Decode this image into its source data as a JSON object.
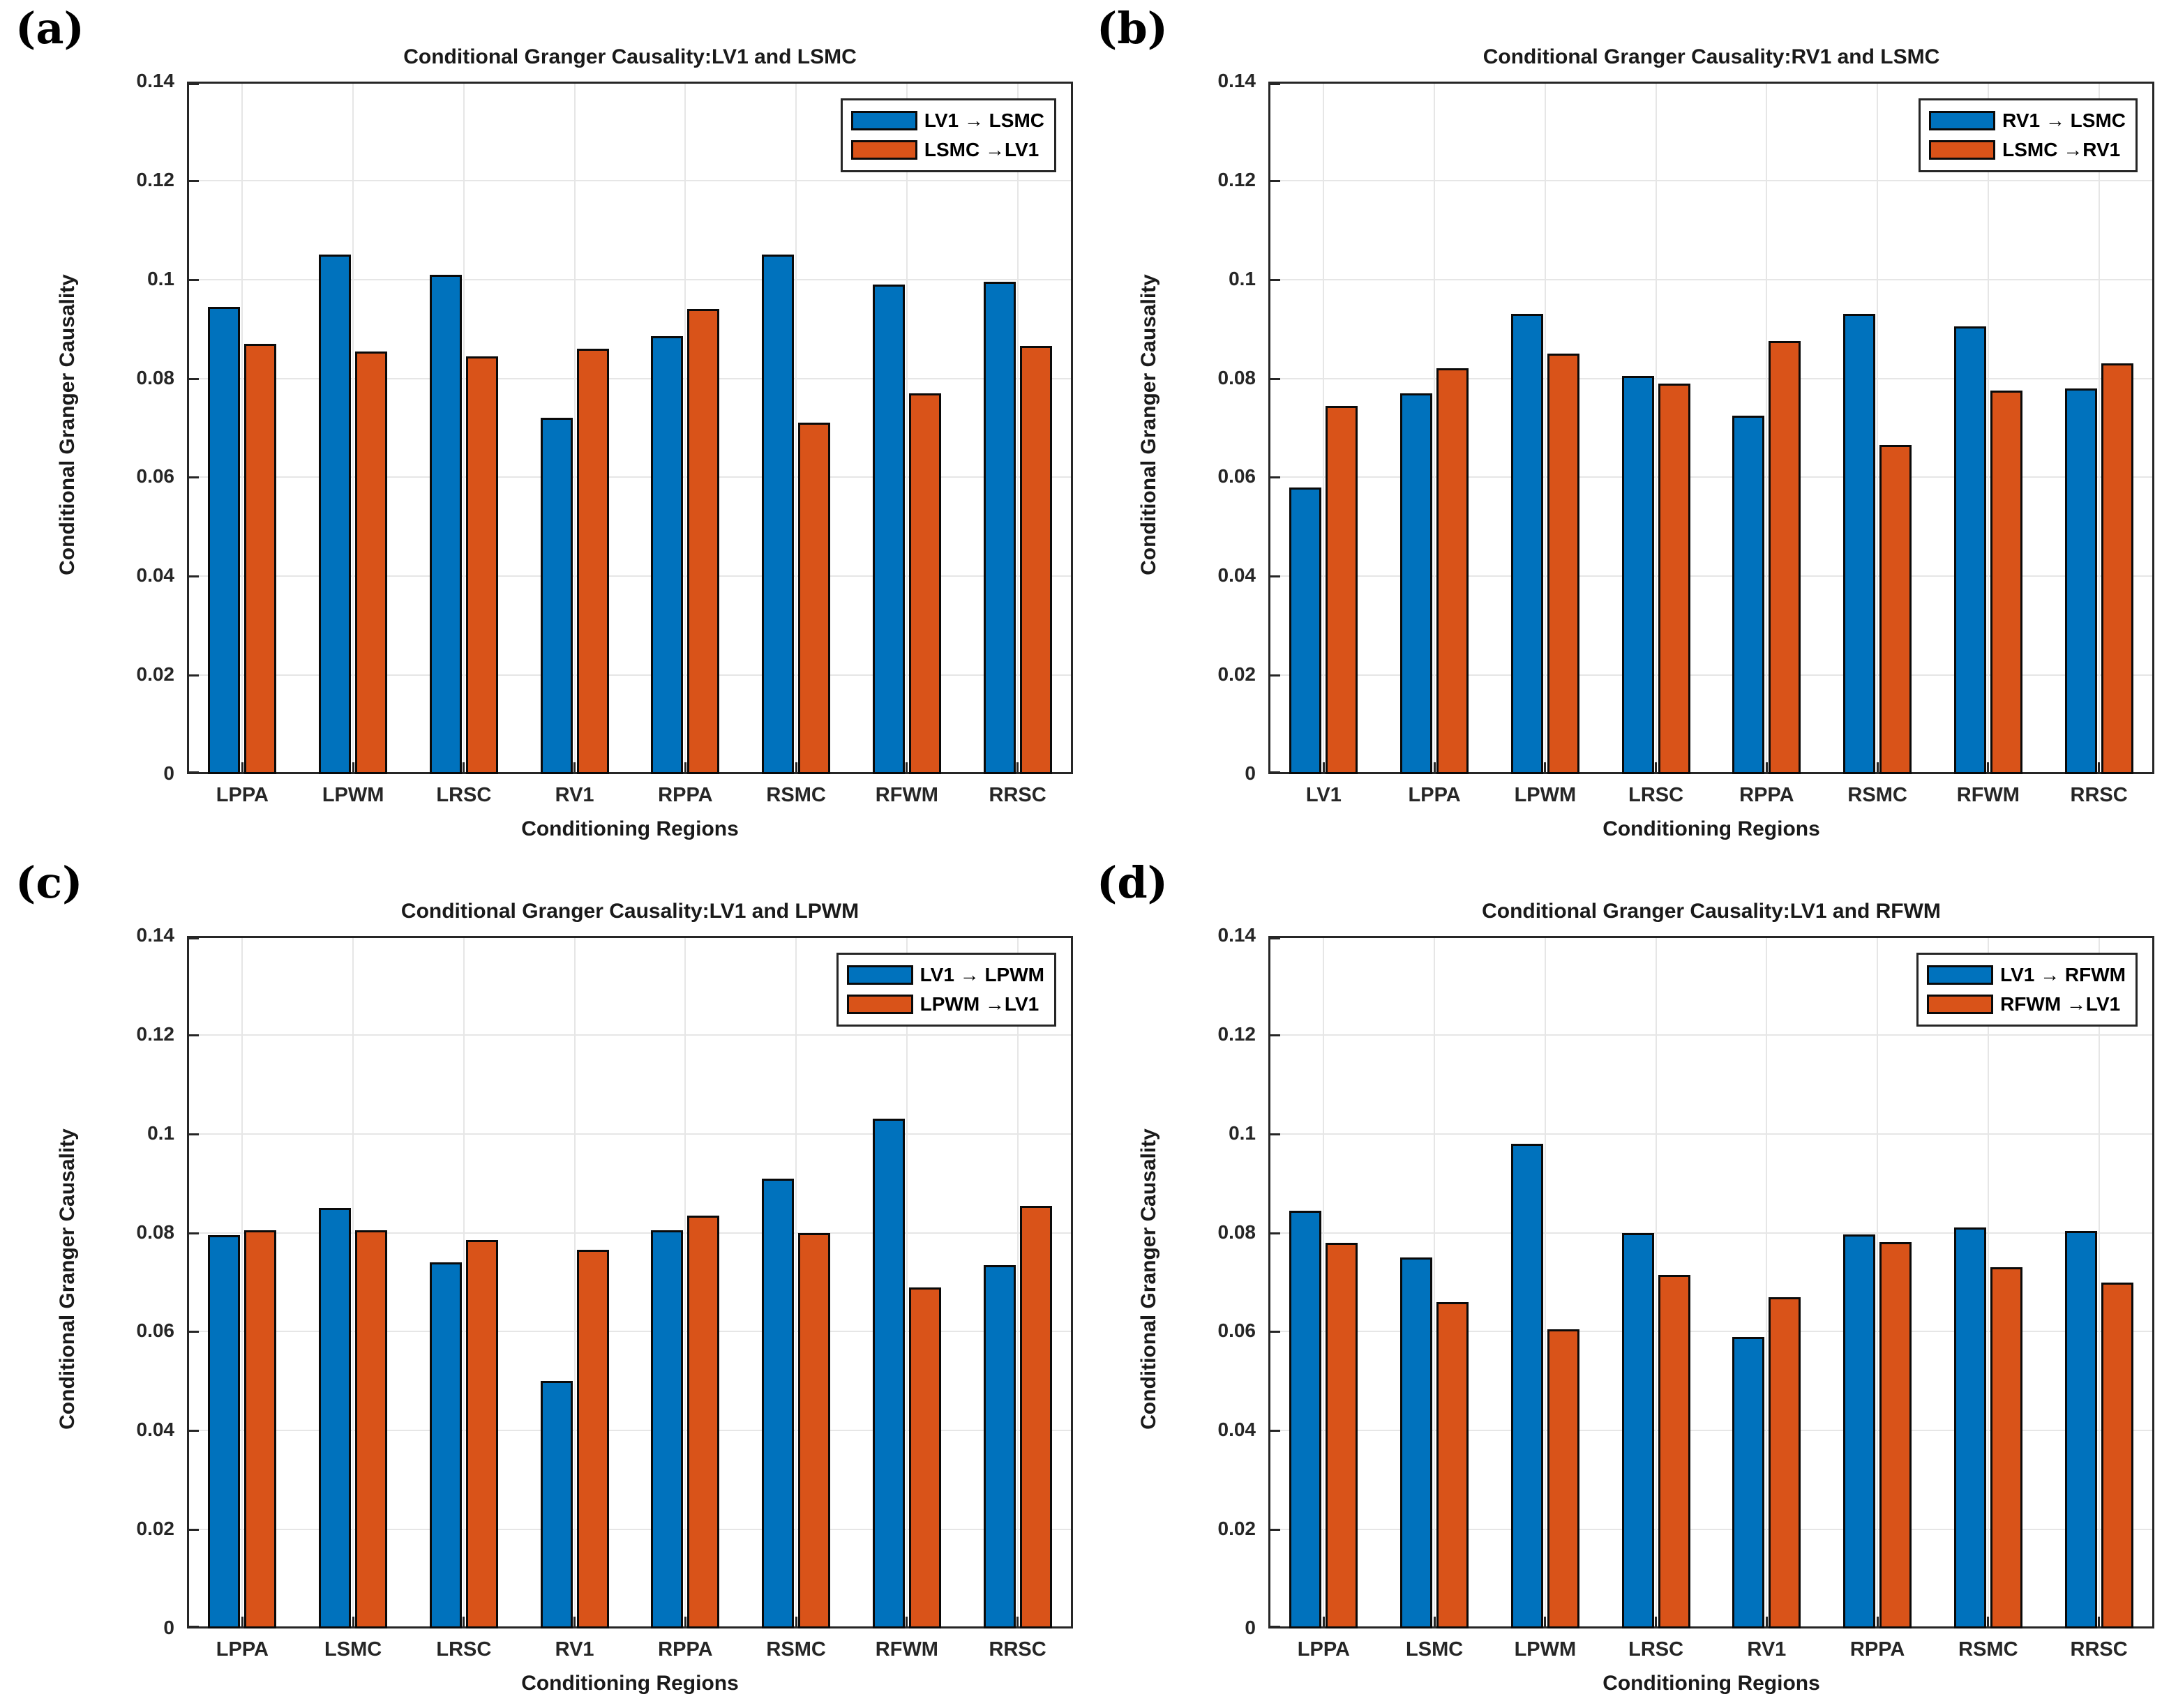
{
  "figure": {
    "background": "#ffffff",
    "axis_color": "#262626",
    "grid_color": "#e6e6e6",
    "bar_edge_color": "#0a0a0a",
    "blue": "#0072BD",
    "orange": "#D95319",
    "xlabel": "Conditioning Regions",
    "ylabel": "Conditional Granger Causality",
    "ytick_values": [
      0,
      0.02,
      0.04,
      0.06,
      0.08,
      0.1,
      0.12,
      0.14
    ],
    "ytick_labels": [
      "0",
      "0.02",
      "0.04",
      "0.06",
      "0.08",
      "0.1",
      "0.12",
      "0.14"
    ]
  },
  "chart_data": [
    {
      "panel": "(a)",
      "type": "bar",
      "title": "Conditional Granger Causality:LV1 and LSMC",
      "xlabel": "Conditioning Regions",
      "ylabel": "Conditional Granger Causality",
      "ylim": [
        0,
        0.14
      ],
      "grid": true,
      "legend_position": "top-right",
      "categories": [
        "LPPA",
        "LPWM",
        "LRSC",
        "RV1",
        "RPPA",
        "RSMC",
        "RFWM",
        "RRSC"
      ],
      "series": [
        {
          "name": "LV1 → LSMC",
          "color": "#0072BD",
          "values": [
            0.0945,
            0.105,
            0.101,
            0.072,
            0.0885,
            0.105,
            0.099,
            0.0995
          ]
        },
        {
          "name": "LSMC →LV1",
          "color": "#D95319",
          "values": [
            0.087,
            0.0855,
            0.0845,
            0.086,
            0.094,
            0.071,
            0.077,
            0.0865
          ]
        }
      ]
    },
    {
      "panel": "(b)",
      "type": "bar",
      "title": "Conditional Granger Causality:RV1 and LSMC",
      "xlabel": "Conditioning Regions",
      "ylabel": "Conditional Granger Causality",
      "ylim": [
        0,
        0.14
      ],
      "grid": true,
      "legend_position": "top-right",
      "categories": [
        "LV1",
        "LPPA",
        "LPWM",
        "LRSC",
        "RPPA",
        "RSMC",
        "RFWM",
        "RRSC"
      ],
      "series": [
        {
          "name": "RV1 → LSMC",
          "color": "#0072BD",
          "values": [
            0.058,
            0.077,
            0.093,
            0.0805,
            0.0725,
            0.093,
            0.0905,
            0.078
          ]
        },
        {
          "name": "LSMC →RV1",
          "color": "#D95319",
          "values": [
            0.0745,
            0.082,
            0.085,
            0.079,
            0.0875,
            0.0665,
            0.0775,
            0.083
          ]
        }
      ]
    },
    {
      "panel": "(c)",
      "type": "bar",
      "title": "Conditional Granger Causality:LV1 and LPWM",
      "xlabel": "Conditioning Regions",
      "ylabel": "Conditional Granger Causality",
      "ylim": [
        0,
        0.14
      ],
      "grid": true,
      "legend_position": "top-right",
      "categories": [
        "LPPA",
        "LSMC",
        "LRSC",
        "RV1",
        "RPPA",
        "RSMC",
        "RFWM",
        "RRSC"
      ],
      "series": [
        {
          "name": "LV1 → LPWM",
          "color": "#0072BD",
          "values": [
            0.0795,
            0.085,
            0.074,
            0.05,
            0.0805,
            0.091,
            0.103,
            0.0735
          ]
        },
        {
          "name": "LPWM →LV1",
          "color": "#D95319",
          "values": [
            0.0805,
            0.0805,
            0.0785,
            0.0765,
            0.0835,
            0.08,
            0.069,
            0.0855
          ]
        }
      ]
    },
    {
      "panel": "(d)",
      "type": "bar",
      "title": "Conditional Granger Causality:LV1 and RFWM",
      "xlabel": "Conditioning Regions",
      "ylabel": "Conditional Granger Causality",
      "ylim": [
        0,
        0.14
      ],
      "grid": true,
      "legend_position": "top-right",
      "categories": [
        "LPPA",
        "LSMC",
        "LPWM",
        "LRSC",
        "RV1",
        "RPPA",
        "RSMC",
        "RRSC"
      ],
      "series": [
        {
          "name": "LV1 → RFWM",
          "color": "#0072BD",
          "values": [
            0.0845,
            0.075,
            0.098,
            0.08,
            0.059,
            0.0797,
            0.081,
            0.0803
          ]
        },
        {
          "name": "RFWM →LV1",
          "color": "#D95319",
          "values": [
            0.078,
            0.066,
            0.0605,
            0.0715,
            0.067,
            0.0781,
            0.073,
            0.07
          ]
        }
      ]
    }
  ]
}
